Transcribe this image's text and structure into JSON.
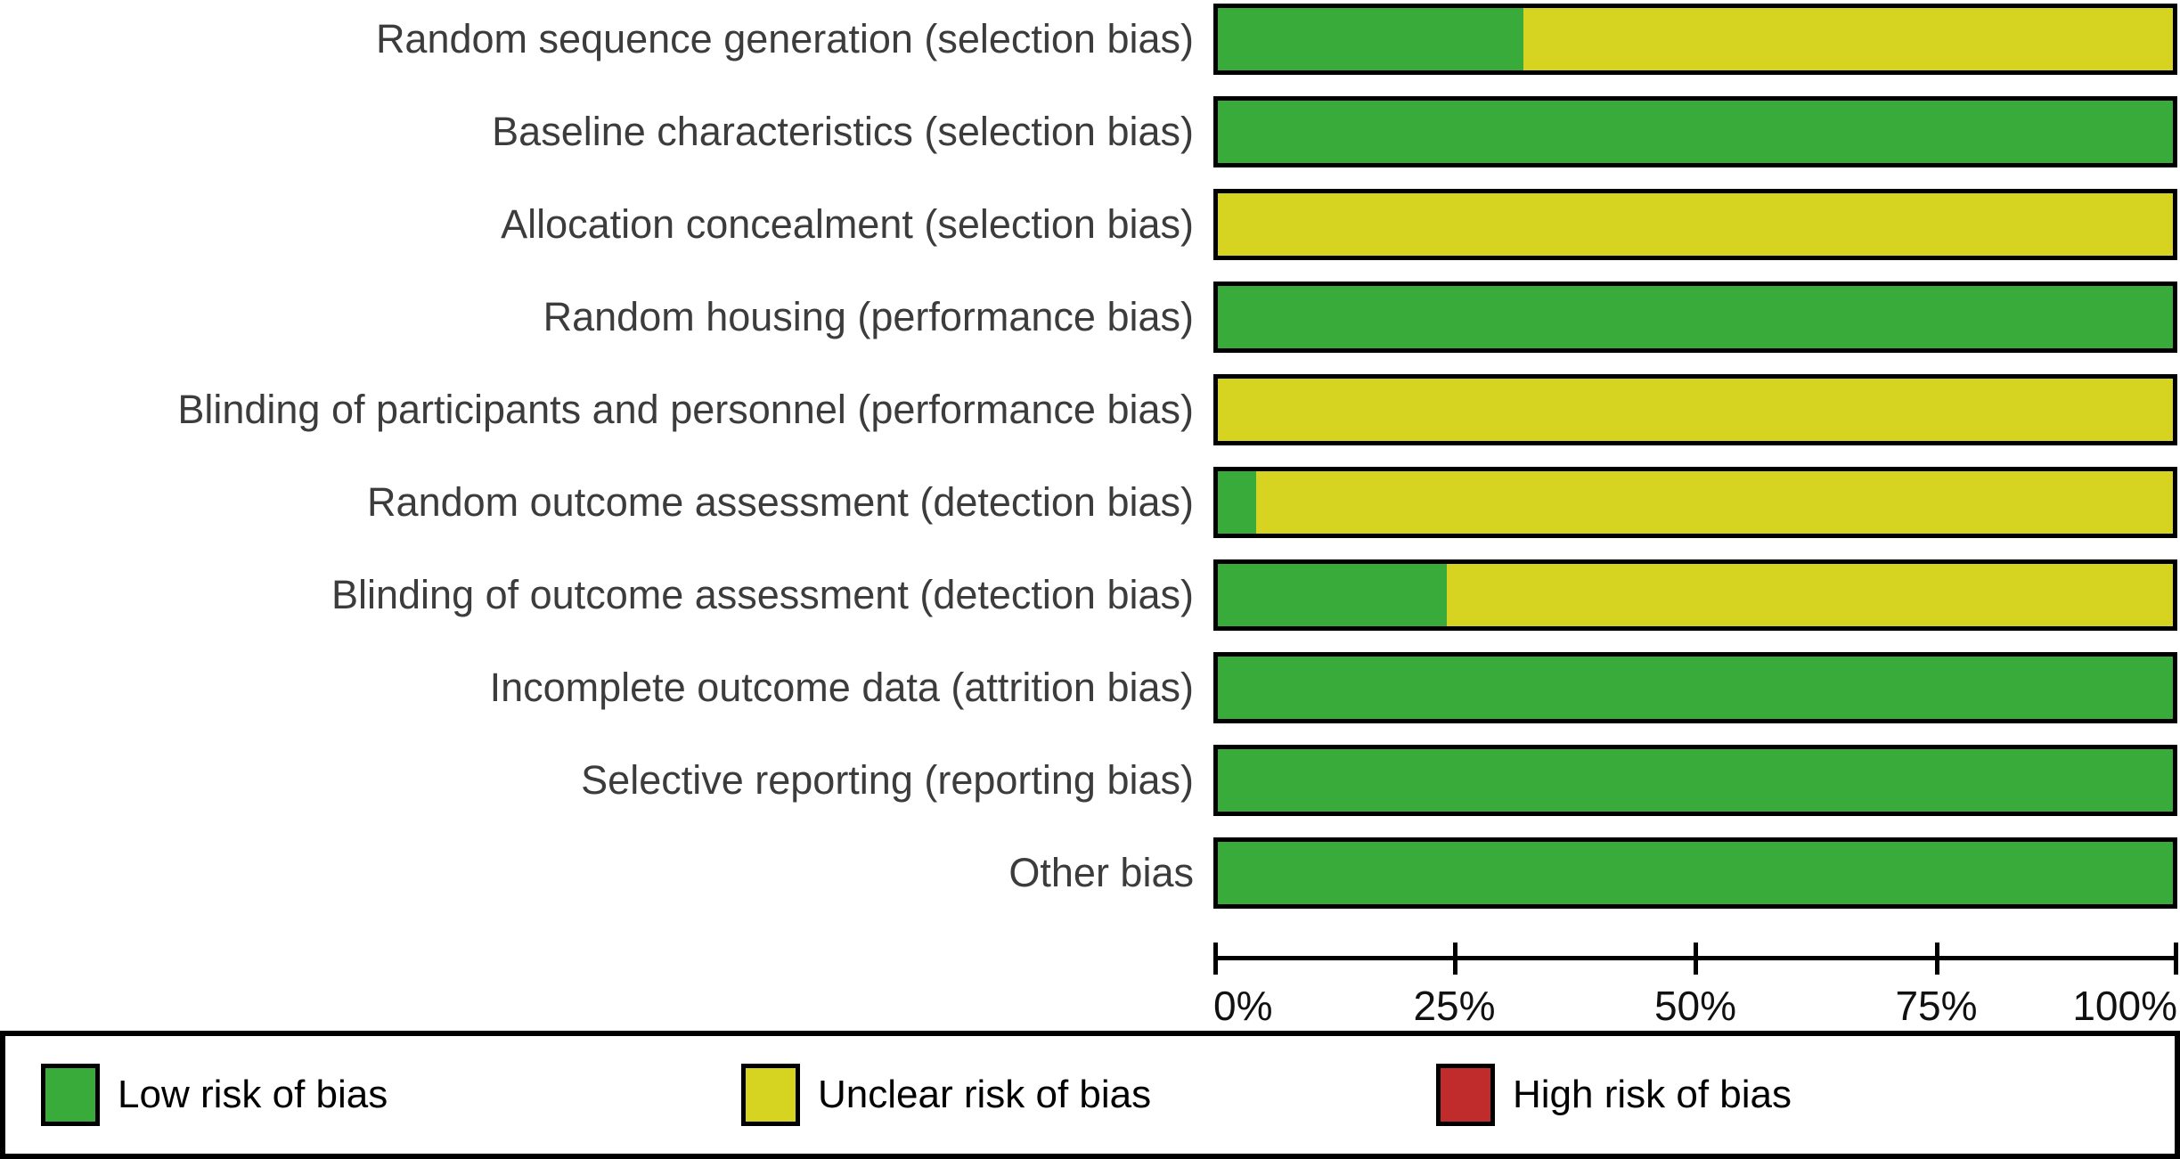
{
  "figure": {
    "kind": "risk-of-bias-graph"
  },
  "chart_data": {
    "type": "bar",
    "orientation": "horizontal_stacked",
    "title": "",
    "xlabel": "",
    "ylabel": "",
    "xlim": [
      0,
      100
    ],
    "grid": false,
    "legend_position": "bottom",
    "categories": [
      "Random sequence generation (selection bias)",
      "Baseline characteristics (selection bias)",
      "Allocation concealment (selection bias)",
      "Random housing (performance bias)",
      "Blinding of participants and personnel (performance bias)",
      "Random outcome assessment (detection bias)",
      "Blinding of outcome assessment (detection bias)",
      "Incomplete outcome data (attrition bias)",
      "Selective reporting (reporting bias)",
      "Other bias"
    ],
    "series": [
      {
        "name": "Low risk of bias",
        "color": "#39ab3a",
        "values": [
          32,
          100,
          0,
          100,
          0,
          4,
          24,
          100,
          100,
          100
        ]
      },
      {
        "name": "Unclear risk of bias",
        "color": "#d6d321",
        "values": [
          68,
          0,
          100,
          0,
          100,
          96,
          76,
          0,
          0,
          0
        ]
      },
      {
        "name": "High risk of bias",
        "color": "#c02b2b",
        "values": [
          0,
          0,
          0,
          0,
          0,
          0,
          0,
          0,
          0,
          0
        ]
      }
    ],
    "x_ticks": [
      {
        "label": "0%",
        "value": 0
      },
      {
        "label": "25%",
        "value": 25
      },
      {
        "label": "50%",
        "value": 50
      },
      {
        "label": "75%",
        "value": 75
      },
      {
        "label": "100%",
        "value": 100
      }
    ]
  }
}
